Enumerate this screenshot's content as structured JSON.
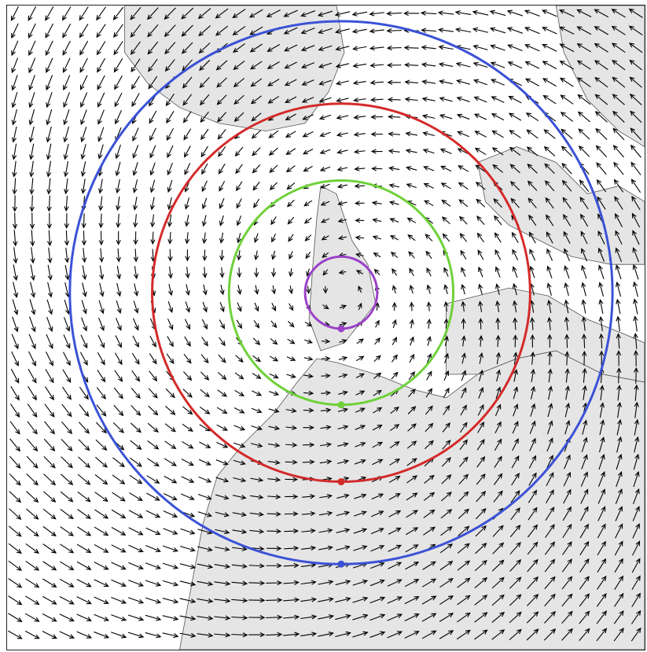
{
  "map": {
    "type": "vector-field",
    "background_color": "#ffffff",
    "land_color": "#e5e5e5",
    "border_color": "#555555",
    "arrow_color": "#000000",
    "arrow_glyph": "open-arrowhead",
    "flow": "cyclonic-counterclockwise",
    "frame": true,
    "circles": [
      {
        "name": "purple-circle",
        "color": "#9b42c8"
      },
      {
        "name": "green-circle",
        "color": "#6fd13a"
      },
      {
        "name": "red-circle",
        "color": "#d42a2a"
      },
      {
        "name": "blue-circle",
        "color": "#3b52d6"
      }
    ]
  }
}
